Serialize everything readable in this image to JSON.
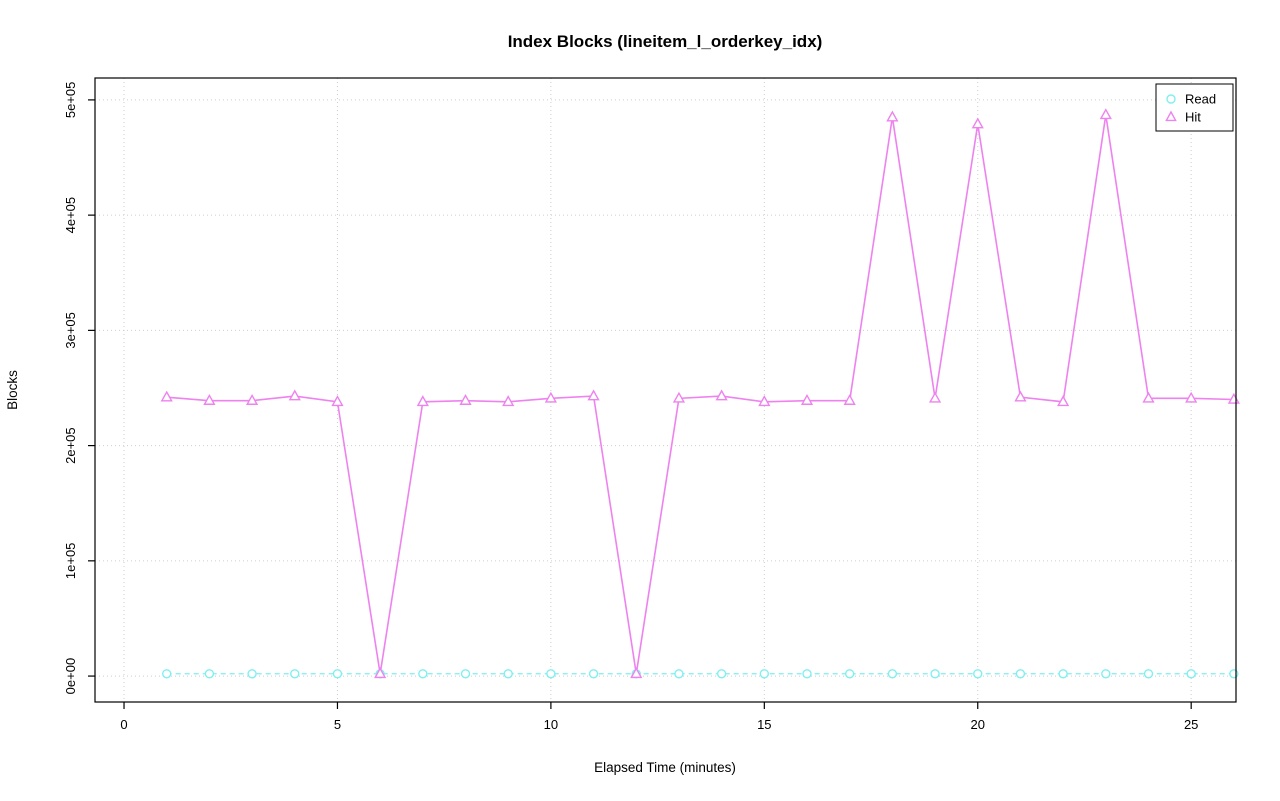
{
  "chart_data": {
    "type": "line",
    "title": "Index Blocks (lineitem_l_orderkey_idx)",
    "xlabel": "Elapsed Time (minutes)",
    "ylabel": "Blocks",
    "x": [
      1,
      2,
      3,
      4,
      5,
      6,
      7,
      8,
      9,
      10,
      11,
      12,
      13,
      14,
      15,
      16,
      17,
      18,
      19,
      20,
      21,
      22,
      23,
      24,
      25,
      26
    ],
    "series": [
      {
        "name": "Read",
        "color": "#7FEFEF",
        "marker": "circle",
        "line_style": "dashed",
        "values": [
          2000,
          2000,
          2000,
          2000,
          2000,
          2000,
          2000,
          2000,
          2000,
          2000,
          2000,
          2000,
          2000,
          2000,
          2000,
          2000,
          2000,
          2000,
          2000,
          2000,
          2000,
          2000,
          2000,
          2000,
          2000,
          2000
        ]
      },
      {
        "name": "Hit",
        "color": "#EE82EE",
        "marker": "triangle",
        "line_style": "solid",
        "values": [
          242000,
          239000,
          239000,
          243000,
          238000,
          2000,
          238000,
          239000,
          238000,
          241000,
          243000,
          2000,
          241000,
          243000,
          238000,
          239000,
          239000,
          485000,
          241000,
          479000,
          242000,
          238000,
          487000,
          241000,
          241000,
          240000
        ]
      }
    ],
    "xticks": [
      0,
      5,
      10,
      15,
      20,
      25
    ],
    "xtick_labels": [
      "0",
      "5",
      "10",
      "15",
      "20",
      "25"
    ],
    "ytick_values": [
      0,
      100000,
      200000,
      300000,
      400000,
      500000
    ],
    "ytick_labels": [
      "0e+00",
      "1e+05",
      "2e+05",
      "3e+05",
      "4e+05",
      "5e+05"
    ],
    "xlim": [
      -0.68,
      26.05
    ],
    "ylim": [
      -22500,
      519000
    ],
    "grid": true,
    "grid_color": "#CDCDCD",
    "legend_position": "top-right",
    "legend": [
      "Read",
      "Hit"
    ]
  }
}
